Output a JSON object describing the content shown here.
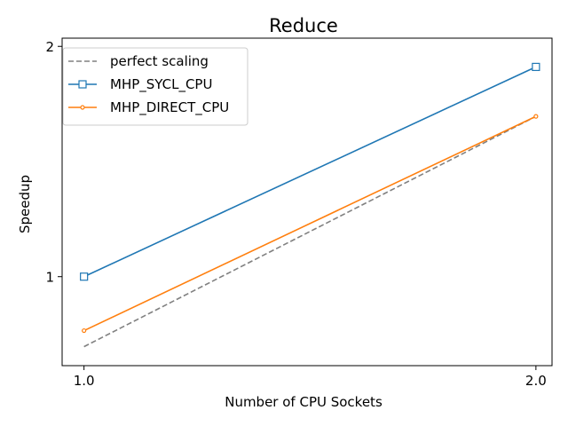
{
  "chart_data": {
    "type": "line",
    "title": "Reduce",
    "xlabel": "Number of CPU Sockets",
    "ylabel": "Speedup",
    "xscale": "log",
    "yscale": "log",
    "xlim": [
      0.967,
      2.05
    ],
    "ylim": [
      0.765,
      2.05
    ],
    "xticks": [
      1.0,
      2.0
    ],
    "xtick_labels": [
      "1.0",
      "2.0"
    ],
    "yticks": [
      1,
      2
    ],
    "ytick_labels": [
      "1",
      "2"
    ],
    "grid": false,
    "legend_position": "top-left",
    "x": [
      1.0,
      2.0
    ],
    "series": [
      {
        "name": "perfect scaling",
        "values": [
          0.81,
          1.62
        ],
        "color": "#808080",
        "style": "dashed",
        "marker": "none"
      },
      {
        "name": "MHP_SYCL_CPU",
        "values": [
          1.0,
          1.88
        ],
        "color": "#1f77b4",
        "style": "solid",
        "marker": "square"
      },
      {
        "name": "MHP_DIRECT_CPU",
        "values": [
          0.85,
          1.62
        ],
        "color": "#ff7f0e",
        "style": "solid",
        "marker": "circle"
      }
    ]
  }
}
